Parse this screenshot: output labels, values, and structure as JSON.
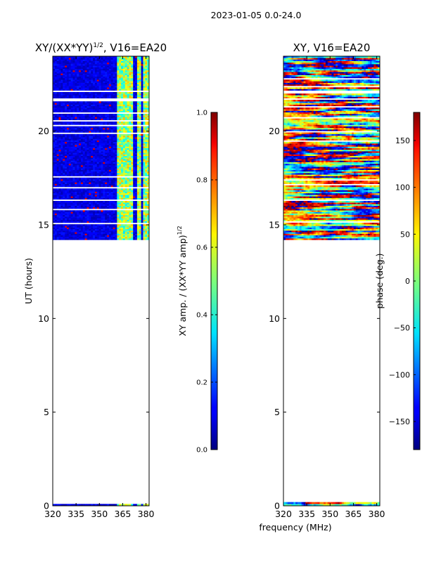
{
  "figure": {
    "suptitle": "2023-01-05 0.0-24.0",
    "xlabel_shared": "frequency (MHz)"
  },
  "chart_data": [
    {
      "type": "heatmap",
      "title_main": "XY/(XX*YY)",
      "title_sup": "1/2",
      "title_rest": ", V16=EA20",
      "ylabel": "UT (hours)",
      "xlim": [
        320,
        382
      ],
      "ylim": [
        0,
        24
      ],
      "xticks": [
        320,
        335,
        350,
        365,
        380
      ],
      "yticks": [
        0,
        5,
        10,
        15,
        20
      ],
      "data_time_ranges": [
        [
          0.0,
          0.2
        ],
        [
          14.2,
          24.0
        ]
      ],
      "bright_freq_bands": [
        [
          361,
          366
        ],
        [
          367,
          372
        ],
        [
          374,
          377
        ],
        [
          378,
          382
        ]
      ],
      "colorbar": {
        "label_main": "XY amp. / (XX*YY amp)",
        "label_sup": "1/2",
        "range": [
          0.0,
          1.0
        ],
        "ticks": [
          "0.0",
          "0.2",
          "0.4",
          "0.6",
          "0.8",
          "1.0"
        ],
        "colormap": "jet"
      }
    },
    {
      "type": "heatmap",
      "title": "XY, V16=EA20",
      "xlim": [
        320,
        382
      ],
      "ylim": [
        0,
        24
      ],
      "xticks": [
        320,
        335,
        350,
        365,
        380
      ],
      "yticks": [
        0,
        5,
        10,
        15,
        20
      ],
      "data_time_ranges": [
        [
          0.0,
          0.2
        ],
        [
          14.2,
          24.0
        ]
      ],
      "colorbar": {
        "label": "phase (deg.)",
        "range": [
          -180,
          180
        ],
        "ticks": [
          "−150",
          "−100",
          "−50",
          "0",
          "50",
          "100",
          "150"
        ],
        "tick_values": [
          -150,
          -100,
          -50,
          0,
          50,
          100,
          150
        ],
        "colormap": "jet"
      }
    }
  ]
}
